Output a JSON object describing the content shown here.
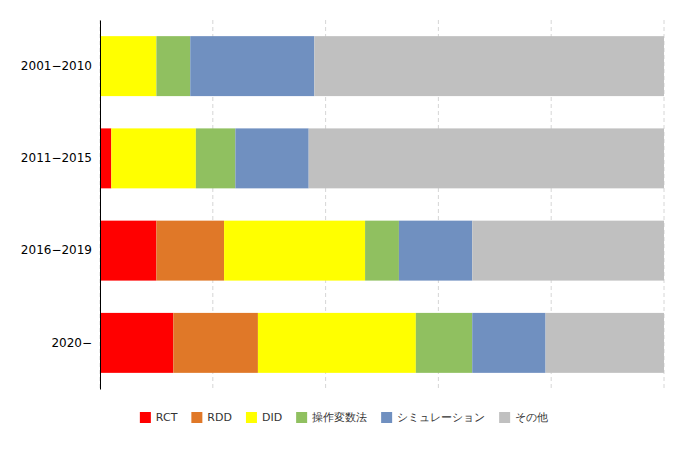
{
  "chart_data": {
    "type": "bar",
    "orientation": "horizontal",
    "stacked": true,
    "categories": [
      "2001−2010",
      "2011−2015",
      "2016−2019",
      "2020−"
    ],
    "series": [
      {
        "name": "RCT",
        "color": "#FF0000",
        "values": [
          0,
          2,
          10,
          13
        ]
      },
      {
        "name": "RDD",
        "color": "#E07828",
        "values": [
          0,
          0,
          12,
          15
        ]
      },
      {
        "name": "DID",
        "color": "#FFFF00",
        "values": [
          10,
          15,
          25,
          28
        ]
      },
      {
        "name": "操作変数法",
        "color": "#90C060",
        "values": [
          6,
          7,
          6,
          10
        ]
      },
      {
        "name": "シミュレーション",
        "color": "#7090C0",
        "values": [
          22,
          13,
          13,
          13
        ]
      },
      {
        "name": "その他",
        "color": "#C0C0C0",
        "values": [
          62,
          63,
          34,
          21
        ]
      }
    ],
    "xlim": [
      0,
      100
    ],
    "xticks": [
      0,
      20,
      40,
      60,
      80,
      100
    ],
    "grid": true,
    "tick_labels": "y",
    "legend": "bottom"
  }
}
